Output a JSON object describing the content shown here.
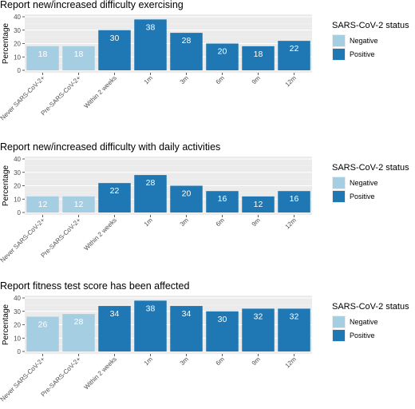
{
  "chart_data": [
    {
      "type": "bar",
      "title": "Report new/increased difficulty exercising",
      "ylabel": "Percentage",
      "xlabel": "",
      "ylim": [
        0,
        40
      ],
      "yticks": [
        0,
        10,
        20,
        30,
        40
      ],
      "categories": [
        "Never SARS-CoV-2+",
        "Pre-SARS-CoV-2+",
        "Within 2 weeks",
        "1m",
        "3m",
        "6m",
        "9m",
        "12m"
      ],
      "values": [
        18,
        18,
        30,
        38,
        28,
        20,
        18,
        22
      ],
      "status": [
        "Negative",
        "Negative",
        "Positive",
        "Positive",
        "Positive",
        "Positive",
        "Positive",
        "Positive"
      ],
      "grid": true,
      "legend": {
        "title": "SARS-CoV-2 status",
        "position": "right",
        "entries": [
          {
            "label": "Negative",
            "color": "#a6cee3"
          },
          {
            "label": "Positive",
            "color": "#1f78b4"
          }
        ]
      }
    },
    {
      "type": "bar",
      "title": "Report new/increased difficulty with daily activities",
      "ylabel": "Percentage",
      "xlabel": "",
      "ylim": [
        0,
        40
      ],
      "yticks": [
        0,
        10,
        20,
        30,
        40
      ],
      "categories": [
        "Never SARS-CoV-2+",
        "Pre-SARS-CoV-2+",
        "Within 2 weeks",
        "1m",
        "3m",
        "6m",
        "9m",
        "12m"
      ],
      "values": [
        12,
        12,
        22,
        28,
        20,
        16,
        12,
        16
      ],
      "status": [
        "Negative",
        "Negative",
        "Positive",
        "Positive",
        "Positive",
        "Positive",
        "Positive",
        "Positive"
      ],
      "grid": true,
      "legend": {
        "title": "SARS-CoV-2 status",
        "position": "right",
        "entries": [
          {
            "label": "Negative",
            "color": "#a6cee3"
          },
          {
            "label": "Positive",
            "color": "#1f78b4"
          }
        ]
      }
    },
    {
      "type": "bar",
      "title": "Report fitness test score has been affected",
      "ylabel": "Percentage",
      "xlabel": "",
      "ylim": [
        0,
        40
      ],
      "yticks": [
        0,
        10,
        20,
        30,
        40
      ],
      "categories": [
        "Never SARS-CoV-2+",
        "Pre-SARS-CoV-2+",
        "Within 2 weeks",
        "1m",
        "3m",
        "6m",
        "9m",
        "12m"
      ],
      "values": [
        26,
        28,
        34,
        38,
        34,
        30,
        32,
        32
      ],
      "status": [
        "Negative",
        "Negative",
        "Positive",
        "Positive",
        "Positive",
        "Positive",
        "Positive",
        "Positive"
      ],
      "grid": true,
      "legend": {
        "title": "SARS-CoV-2 status",
        "position": "right",
        "entries": [
          {
            "label": "Negative",
            "color": "#a6cee3"
          },
          {
            "label": "Positive",
            "color": "#1f78b4"
          }
        ]
      }
    }
  ],
  "colors": {
    "panel_background": "#ebebeb",
    "grid_major": "#ffffff",
    "grid_minor": "#f4f4f4",
    "negative": "#a6cee3",
    "positive": "#1f78b4"
  }
}
